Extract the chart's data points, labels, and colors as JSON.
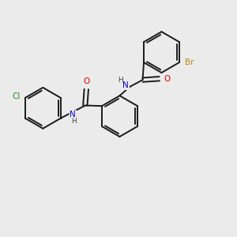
{
  "background_color": "#ebebeb",
  "bond_color": "#1a1a1a",
  "atom_colors": {
    "Br": "#b8860b",
    "Cl": "#228B22",
    "N": "#0000cc",
    "O": "#dd0000",
    "H": "#444444"
  },
  "figsize": [
    3.0,
    3.0
  ],
  "dpi": 100,
  "lw": 1.4
}
